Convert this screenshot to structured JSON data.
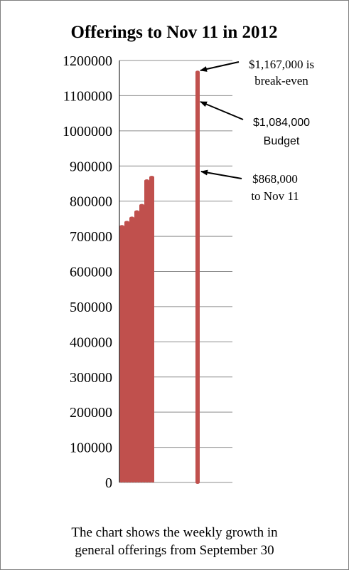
{
  "chart_data": {
    "type": "bar",
    "title": "Offerings to Nov 11 in 2012",
    "xlabel": "",
    "ylabel": "",
    "ylim": [
      0,
      1200000
    ],
    "yticks": [
      0,
      100000,
      200000,
      300000,
      400000,
      500000,
      600000,
      700000,
      800000,
      900000,
      1000000,
      1100000,
      1200000
    ],
    "ytick_labels": [
      "0",
      "100000",
      "200000",
      "300000",
      "400000",
      "500000",
      "600000",
      "700000",
      "800000",
      "900000",
      "1000000",
      "1100000",
      "1200000"
    ],
    "grid": true,
    "bar_color": "#c0504d",
    "weekly_values": [
      728000,
      740000,
      752000,
      770000,
      788000,
      858000,
      868000
    ],
    "break_even_value": 1167000
  },
  "annotations": {
    "break_even": {
      "line1": "$1,167,000 is",
      "line2": "break-even"
    },
    "budget": {
      "line1": "$1,084,000",
      "line2": "Budget"
    },
    "to_date": {
      "line1": "$868,000",
      "line2": "to Nov 11"
    }
  },
  "caption": {
    "line1": "The chart shows the weekly growth in",
    "line2": "general offerings from September 30"
  }
}
